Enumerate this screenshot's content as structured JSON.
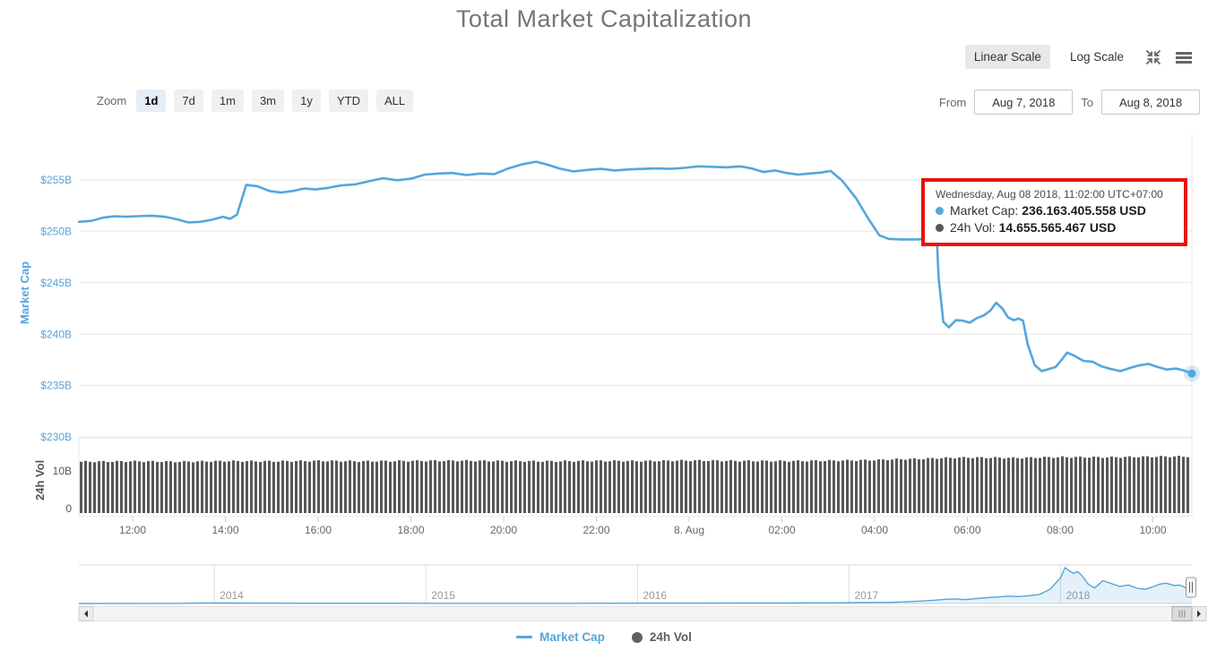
{
  "page": {
    "title": "Total Market Capitalization"
  },
  "scale_toggle": {
    "linear": "Linear Scale",
    "log": "Log Scale",
    "selected": "Linear Scale"
  },
  "icons": {
    "shrink": "shrink-arrows-icon",
    "menu": "hamburger-menu-icon",
    "scroll_left": "left-arrow-icon",
    "scroll_right": "right-arrow-icon"
  },
  "zoom_controls": {
    "label": "Zoom",
    "buttons": [
      {
        "label": "1d",
        "active": true
      },
      {
        "label": "7d",
        "active": false
      },
      {
        "label": "1m",
        "active": false
      },
      {
        "label": "3m",
        "active": false
      },
      {
        "label": "1y",
        "active": false
      },
      {
        "label": "YTD",
        "active": false
      },
      {
        "label": "ALL",
        "active": false
      }
    ]
  },
  "date_range": {
    "from_label": "From",
    "from_value": "Aug 7, 2018",
    "to_label": "To",
    "to_value": "Aug 8, 2018"
  },
  "tooltip": {
    "datetime": "Wednesday, Aug 08 2018, 11:02:00 UTC+07:00",
    "rows": [
      {
        "label": "Market Cap:",
        "value": "236.163.405.558 USD",
        "color": "#54a6dc"
      },
      {
        "label": "24h Vol:",
        "value": "14.655.565.467 USD",
        "color": "#555555"
      }
    ]
  },
  "legend": {
    "items": [
      {
        "label": "Market Cap",
        "color": "#54a6dc",
        "marker": "line"
      },
      {
        "label": "24h Vol",
        "color": "#616161",
        "marker": "circle"
      }
    ]
  },
  "colors": {
    "accent_blue": "#54a6dc",
    "volume_gray": "#575757",
    "tooltip_border_red": "#e8130c",
    "title_gray": "#757575",
    "grid": "#e8e8e8"
  },
  "chart_data": [
    {
      "name": "market_cap_main",
      "type": "line",
      "title": "Total Market Capitalization",
      "xlabel": "",
      "ylabel": "Market Cap",
      "line_color": "#54a6dc",
      "grid": true,
      "x_unit": "hours since 2018-08-07 00:00 local",
      "x_range": [
        10.84,
        34.84
      ],
      "ylim": [
        230,
        259.4
      ],
      "y_ticks": [
        {
          "v": 230,
          "label": "$230B"
        },
        {
          "v": 235,
          "label": "$235B"
        },
        {
          "v": 240,
          "label": "$240B"
        },
        {
          "v": 245,
          "label": "$245B"
        },
        {
          "v": 250,
          "label": "$250B"
        },
        {
          "v": 255,
          "label": "$255B"
        }
      ],
      "x_ticks": [
        {
          "t": 12,
          "label": "12:00"
        },
        {
          "t": 14,
          "label": "14:00"
        },
        {
          "t": 16,
          "label": "16:00"
        },
        {
          "t": 18,
          "label": "18:00"
        },
        {
          "t": 20,
          "label": "20:00"
        },
        {
          "t": 22,
          "label": "22:00"
        },
        {
          "t": 24,
          "label": "8. Aug"
        },
        {
          "t": 26,
          "label": "02:00"
        },
        {
          "t": 28,
          "label": "04:00"
        },
        {
          "t": 30,
          "label": "06:00"
        },
        {
          "t": 32,
          "label": "08:00"
        },
        {
          "t": 34,
          "label": "10:00"
        }
      ],
      "last_point": {
        "t": 34.84,
        "value_billions": 236.163405558
      },
      "points": [
        [
          10.84,
          250.9
        ],
        [
          11.1,
          251.0
        ],
        [
          11.35,
          251.3
        ],
        [
          11.6,
          251.45
        ],
        [
          11.85,
          251.4
        ],
        [
          12.1,
          251.45
        ],
        [
          12.4,
          251.5
        ],
        [
          12.7,
          251.4
        ],
        [
          12.95,
          251.15
        ],
        [
          13.2,
          250.85
        ],
        [
          13.45,
          250.9
        ],
        [
          13.7,
          251.1
        ],
        [
          13.95,
          251.4
        ],
        [
          14.1,
          251.2
        ],
        [
          14.25,
          251.6
        ],
        [
          14.45,
          254.5
        ],
        [
          14.7,
          254.35
        ],
        [
          14.95,
          253.9
        ],
        [
          15.2,
          253.75
        ],
        [
          15.45,
          253.9
        ],
        [
          15.7,
          254.15
        ],
        [
          15.95,
          254.05
        ],
        [
          16.2,
          254.2
        ],
        [
          16.5,
          254.45
        ],
        [
          16.8,
          254.55
        ],
        [
          17.1,
          254.85
        ],
        [
          17.4,
          255.15
        ],
        [
          17.7,
          254.95
        ],
        [
          18.0,
          255.1
        ],
        [
          18.3,
          255.5
        ],
        [
          18.6,
          255.6
        ],
        [
          18.9,
          255.65
        ],
        [
          19.2,
          255.45
        ],
        [
          19.5,
          255.6
        ],
        [
          19.8,
          255.55
        ],
        [
          20.1,
          256.1
        ],
        [
          20.4,
          256.5
        ],
        [
          20.7,
          256.75
        ],
        [
          20.95,
          256.45
        ],
        [
          21.2,
          256.1
        ],
        [
          21.5,
          255.8
        ],
        [
          21.8,
          255.95
        ],
        [
          22.1,
          256.05
        ],
        [
          22.4,
          255.9
        ],
        [
          22.7,
          256.0
        ],
        [
          23.0,
          256.05
        ],
        [
          23.3,
          256.1
        ],
        [
          23.6,
          256.05
        ],
        [
          23.9,
          256.15
        ],
        [
          24.2,
          256.3
        ],
        [
          24.5,
          256.25
        ],
        [
          24.8,
          256.2
        ],
        [
          25.1,
          256.3
        ],
        [
          25.35,
          256.1
        ],
        [
          25.6,
          255.75
        ],
        [
          25.85,
          255.9
        ],
        [
          26.1,
          255.65
        ],
        [
          26.35,
          255.5
        ],
        [
          26.6,
          255.6
        ],
        [
          26.85,
          255.7
        ],
        [
          27.05,
          255.85
        ],
        [
          27.3,
          254.9
        ],
        [
          27.6,
          253.2
        ],
        [
          27.85,
          251.3
        ],
        [
          28.1,
          249.6
        ],
        [
          28.3,
          249.25
        ],
        [
          28.6,
          249.2
        ],
        [
          28.9,
          249.2
        ],
        [
          29.1,
          249.25
        ],
        [
          29.22,
          249.6
        ],
        [
          29.3,
          253.2
        ],
        [
          29.38,
          245.5
        ],
        [
          29.48,
          241.2
        ],
        [
          29.6,
          240.65
        ],
        [
          29.75,
          241.35
        ],
        [
          29.9,
          241.3
        ],
        [
          30.05,
          241.1
        ],
        [
          30.2,
          241.55
        ],
        [
          30.35,
          241.8
        ],
        [
          30.5,
          242.3
        ],
        [
          30.62,
          243.05
        ],
        [
          30.75,
          242.5
        ],
        [
          30.88,
          241.6
        ],
        [
          31.0,
          241.35
        ],
        [
          31.1,
          241.5
        ],
        [
          31.2,
          241.3
        ],
        [
          31.3,
          239.0
        ],
        [
          31.45,
          237.0
        ],
        [
          31.6,
          236.4
        ],
        [
          31.75,
          236.6
        ],
        [
          31.9,
          236.8
        ],
        [
          32.05,
          237.6
        ],
        [
          32.15,
          238.2
        ],
        [
          32.3,
          237.9
        ],
        [
          32.5,
          237.4
        ],
        [
          32.7,
          237.3
        ],
        [
          32.9,
          236.85
        ],
        [
          33.1,
          236.6
        ],
        [
          33.3,
          236.4
        ],
        [
          33.5,
          236.7
        ],
        [
          33.7,
          236.95
        ],
        [
          33.9,
          237.1
        ],
        [
          34.1,
          236.8
        ],
        [
          34.3,
          236.55
        ],
        [
          34.5,
          236.65
        ],
        [
          34.68,
          236.45
        ],
        [
          34.84,
          236.163
        ]
      ]
    },
    {
      "name": "volume_24h",
      "type": "bar",
      "ylabel": "24h Vol",
      "bar_color": "#575757",
      "y_ticks": [
        {
          "v": 0,
          "label": "0"
        },
        {
          "v": 10,
          "label": "10B"
        }
      ],
      "ylim": [
        0,
        18
      ],
      "bar_count": 248,
      "profile_points": [
        [
          10.84,
          12.2
        ],
        [
          12,
          12.3
        ],
        [
          13,
          12.2
        ],
        [
          14,
          12.35
        ],
        [
          15,
          12.3
        ],
        [
          16,
          12.4
        ],
        [
          17,
          12.3
        ],
        [
          18,
          12.4
        ],
        [
          19,
          12.45
        ],
        [
          20,
          12.35
        ],
        [
          21,
          12.3
        ],
        [
          22,
          12.4
        ],
        [
          23,
          12.35
        ],
        [
          24,
          12.5
        ],
        [
          25,
          12.4
        ],
        [
          26,
          12.35
        ],
        [
          27,
          12.45
        ],
        [
          28,
          12.6
        ],
        [
          28.5,
          12.8
        ],
        [
          29,
          12.9
        ],
        [
          29.5,
          13.1
        ],
        [
          30,
          13.2
        ],
        [
          31,
          13.1
        ],
        [
          32,
          13.3
        ],
        [
          33,
          13.25
        ],
        [
          34,
          13.4
        ],
        [
          34.84,
          13.45
        ]
      ]
    },
    {
      "name": "navigator_history",
      "type": "area",
      "line_color": "#54a6dc",
      "area_color": "rgba(84,166,220,0.16)",
      "x_unit": "year",
      "x_range": [
        2013.36,
        2018.62
      ],
      "ylim": [
        0,
        860
      ],
      "x_ticks": [
        {
          "t": 2014,
          "label": "2014"
        },
        {
          "t": 2015,
          "label": "2015"
        },
        {
          "t": 2016,
          "label": "2016"
        },
        {
          "t": 2017,
          "label": "2017"
        },
        {
          "t": 2018,
          "label": "2018"
        }
      ],
      "points": [
        [
          2013.36,
          1
        ],
        [
          2013.6,
          1.5
        ],
        [
          2013.85,
          5
        ],
        [
          2013.95,
          13
        ],
        [
          2014.05,
          11
        ],
        [
          2014.2,
          8
        ],
        [
          2014.4,
          7
        ],
        [
          2014.6,
          6
        ],
        [
          2014.8,
          5.5
        ],
        [
          2015.0,
          4.5
        ],
        [
          2015.2,
          4
        ],
        [
          2015.45,
          3.8
        ],
        [
          2015.7,
          4.2
        ],
        [
          2015.9,
          6
        ],
        [
          2016.1,
          7.5
        ],
        [
          2016.3,
          8.5
        ],
        [
          2016.5,
          12
        ],
        [
          2016.7,
          12.5
        ],
        [
          2016.9,
          14
        ],
        [
          2017.0,
          18
        ],
        [
          2017.1,
          25
        ],
        [
          2017.2,
          28
        ],
        [
          2017.3,
          45
        ],
        [
          2017.4,
          75
        ],
        [
          2017.45,
          95
        ],
        [
          2017.5,
          105
        ],
        [
          2017.55,
          90
        ],
        [
          2017.6,
          115
        ],
        [
          2017.65,
          135
        ],
        [
          2017.7,
          150
        ],
        [
          2017.75,
          170
        ],
        [
          2017.8,
          160
        ],
        [
          2017.85,
          180
        ],
        [
          2017.9,
          210
        ],
        [
          2017.95,
          330
        ],
        [
          2018.0,
          600
        ],
        [
          2018.02,
          830
        ],
        [
          2018.04,
          760
        ],
        [
          2018.06,
          700
        ],
        [
          2018.08,
          740
        ],
        [
          2018.1,
          650
        ],
        [
          2018.13,
          450
        ],
        [
          2018.16,
          360
        ],
        [
          2018.2,
          530
        ],
        [
          2018.24,
          460
        ],
        [
          2018.28,
          395
        ],
        [
          2018.32,
          430
        ],
        [
          2018.36,
          355
        ],
        [
          2018.4,
          330
        ],
        [
          2018.44,
          395
        ],
        [
          2018.47,
          450
        ],
        [
          2018.5,
          470
        ],
        [
          2018.52,
          440
        ],
        [
          2018.54,
          415
        ],
        [
          2018.56,
          430
        ],
        [
          2018.58,
          390
        ],
        [
          2018.6,
          340
        ],
        [
          2018.62,
          318
        ]
      ]
    }
  ]
}
